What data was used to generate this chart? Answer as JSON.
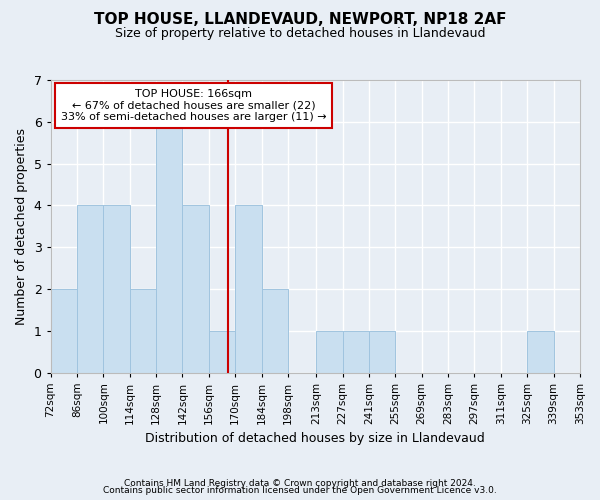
{
  "title": "TOP HOUSE, LLANDEVAUD, NEWPORT, NP18 2AF",
  "subtitle": "Size of property relative to detached houses in Llandevaud",
  "xlabel": "Distribution of detached houses by size in Llandevaud",
  "ylabel": "Number of detached properties",
  "bin_labels": [
    "72sqm",
    "86sqm",
    "100sqm",
    "114sqm",
    "128sqm",
    "142sqm",
    "156sqm",
    "170sqm",
    "184sqm",
    "198sqm",
    "213sqm",
    "227sqm",
    "241sqm",
    "255sqm",
    "269sqm",
    "283sqm",
    "297sqm",
    "311sqm",
    "325sqm",
    "339sqm",
    "353sqm"
  ],
  "bar_heights": [
    2,
    4,
    4,
    2,
    6,
    4,
    1,
    4,
    2,
    0,
    1,
    1,
    1,
    0,
    0,
    0,
    0,
    0,
    1,
    0
  ],
  "bar_color": "#c9dff0",
  "bar_edge_color": "#a0c4df",
  "bar_bins": [
    72,
    86,
    100,
    114,
    128,
    142,
    156,
    170,
    184,
    198,
    213,
    227,
    241,
    255,
    269,
    283,
    297,
    311,
    325,
    339,
    353
  ],
  "red_line_x": 166,
  "annotation_title": "TOP HOUSE: 166sqm",
  "annotation_line1": "← 67% of detached houses are smaller (22)",
  "annotation_line2": "33% of semi-detached houses are larger (11) →",
  "annotation_box_color": "#ffffff",
  "annotation_box_edge": "#cc0000",
  "red_line_color": "#cc0000",
  "ylim": [
    0,
    7
  ],
  "yticks": [
    0,
    1,
    2,
    3,
    4,
    5,
    6,
    7
  ],
  "background_color": "#e8eef5",
  "plot_background": "#e8eef5",
  "grid_color": "#ffffff",
  "footer1": "Contains HM Land Registry data © Crown copyright and database right 2024.",
  "footer2": "Contains public sector information licensed under the Open Government Licence v3.0."
}
